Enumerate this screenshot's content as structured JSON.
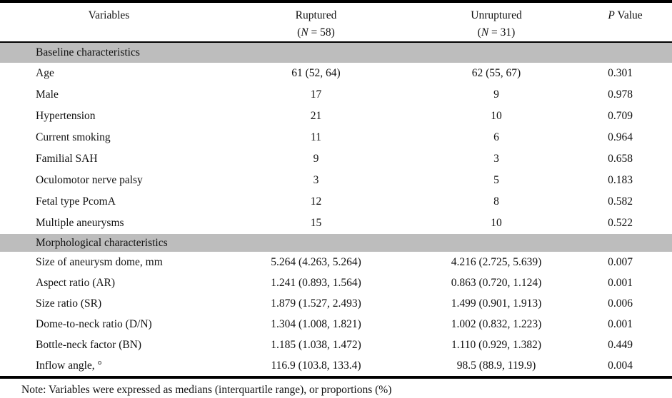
{
  "table": {
    "columns": [
      {
        "label": "Variables",
        "sub": ""
      },
      {
        "label": "Ruptured",
        "sub": "(N = 58)"
      },
      {
        "label": "Unruptured",
        "sub": "(N = 31)"
      },
      {
        "label": "P Value",
        "sub": ""
      }
    ],
    "sections": [
      {
        "header": "Baseline characteristics",
        "rows": [
          [
            "Age",
            "61 (52, 64)",
            "62 (55, 67)",
            "0.301"
          ],
          [
            "Male",
            "17",
            "9",
            "0.978"
          ],
          [
            "Hypertension",
            "21",
            "10",
            "0.709"
          ],
          [
            "Current smoking",
            "11",
            "6",
            "0.964"
          ],
          [
            "Familial SAH",
            "9",
            "3",
            "0.658"
          ],
          [
            "Oculomotor nerve palsy",
            "3",
            "5",
            "0.183"
          ],
          [
            "Fetal type PcomA",
            "12",
            "8",
            "0.582"
          ],
          [
            "Multiple aneurysms",
            "15",
            "10",
            "0.522"
          ]
        ]
      },
      {
        "header": "Morphological characteristics",
        "rows": [
          [
            "Size of aneurysm dome, mm",
            "5.264 (4.263, 5.264)",
            "4.216 (2.725, 5.639)",
            "0.007"
          ],
          [
            "Aspect ratio (AR)",
            "1.241 (0.893, 1.564)",
            "0.863 (0.720, 1.124)",
            "0.001"
          ],
          [
            "Size ratio (SR)",
            "1.879 (1.527, 2.493)",
            "1.499 (0.901, 1.913)",
            "0.006"
          ],
          [
            "Dome-to-neck ratio (D/N)",
            "1.304 (1.008, 1.821)",
            "1.002 (0.832, 1.223)",
            "0.001"
          ],
          [
            "Bottle-neck factor (BN)",
            "1.185 (1.038, 1.472)",
            "1.110 (0.929, 1.382)",
            "0.449"
          ],
          [
            "Inflow angle, °",
            "116.9 (103.8, 133.4)",
            "98.5 (88.9, 119.9)",
            "0.004"
          ]
        ]
      }
    ],
    "note": "Note: Variables were expressed as medians (interquartile range), or proportions (%)"
  },
  "colors": {
    "section_band": "#bdbdbd",
    "rule": "#000000",
    "text": "#111111",
    "background": "#ffffff"
  }
}
